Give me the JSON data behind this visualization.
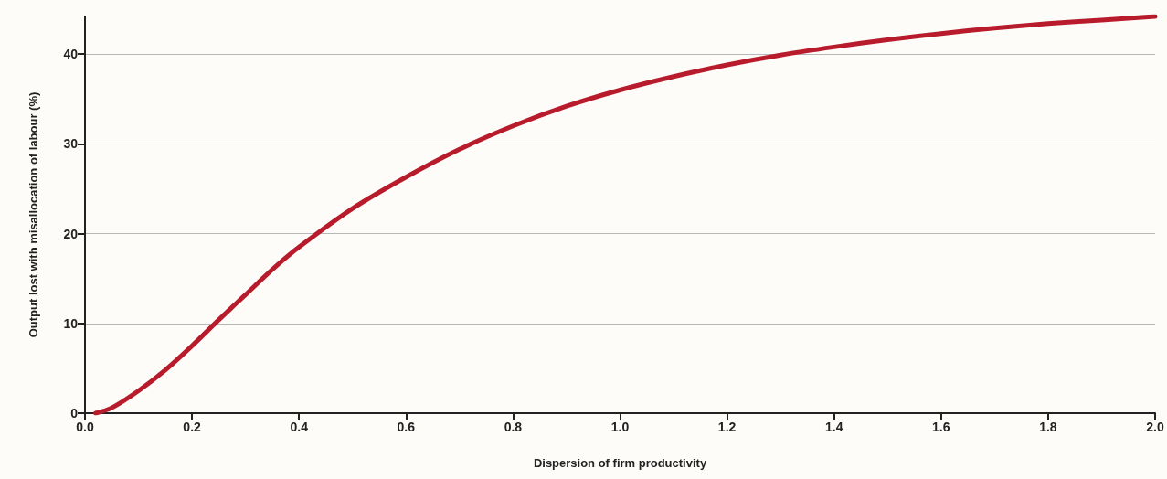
{
  "chart_data": {
    "type": "line",
    "xlabel": "Dispersion of firm productivity",
    "ylabel": "Output lost with misallocation of labour (%)",
    "x": [
      0.02,
      0.05,
      0.1,
      0.15,
      0.2,
      0.25,
      0.3,
      0.35,
      0.4,
      0.5,
      0.6,
      0.7,
      0.8,
      0.9,
      1.0,
      1.1,
      1.2,
      1.3,
      1.4,
      1.5,
      1.6,
      1.7,
      1.8,
      1.9,
      2.0
    ],
    "series": [
      {
        "color": "#b81c2c",
        "values": [
          0,
          0.6,
          2.5,
          4.8,
          7.5,
          10.4,
          13.2,
          16,
          18.5,
          22.8,
          26.3,
          29.4,
          32,
          34.2,
          36,
          37.5,
          38.8,
          39.9,
          40.8,
          41.6,
          42.3,
          42.9,
          43.4,
          43.8,
          44.2
        ]
      }
    ],
    "xlim": [
      0,
      2
    ],
    "xticks": [
      {
        "value": 0,
        "label": "0.0"
      },
      0.2,
      0.4,
      0.6,
      0.8,
      {
        "value": 1,
        "label": "1.0"
      },
      1.2,
      1.4,
      1.6,
      1.8,
      {
        "value": 2,
        "label": "2.0"
      }
    ],
    "ylim": [
      0,
      44.2
    ],
    "yticks": [
      0,
      10,
      20,
      30,
      40
    ],
    "grid": "y",
    "marker": "none",
    "line_style": "solid"
  }
}
